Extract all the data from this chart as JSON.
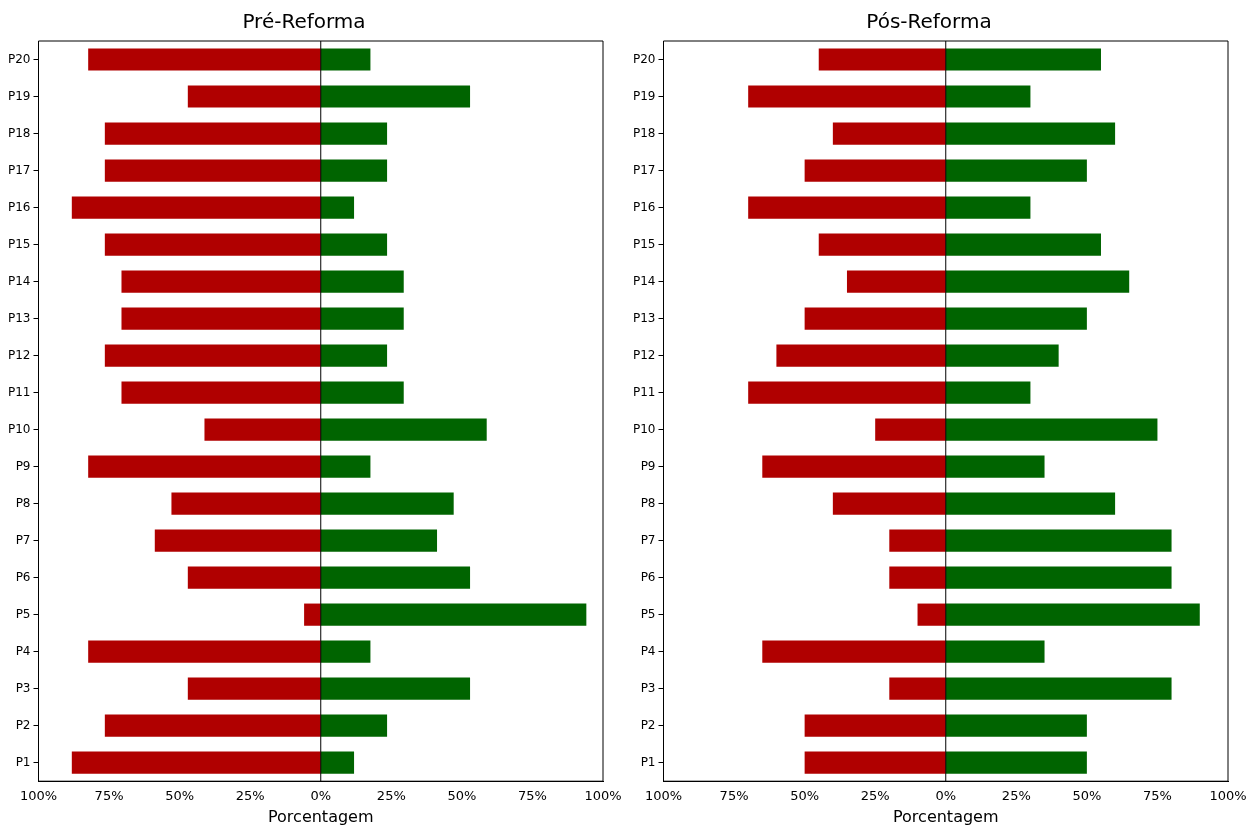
{
  "chart_data": [
    {
      "type": "bar",
      "title": "Pré-Reforma",
      "xlabel": "Porcentagem",
      "orientation": "horizontal",
      "stacked": true,
      "grid": false,
      "legend": false,
      "categories": [
        "P20",
        "P19",
        "P18",
        "P17",
        "P16",
        "P15",
        "P14",
        "P13",
        "P12",
        "P11",
        "P10",
        "P9",
        "P8",
        "P7",
        "P6",
        "P5",
        "P4",
        "P3",
        "P2",
        "P1"
      ],
      "series": [
        {
          "color": "#b00000",
          "values": [
            -82.4,
            -47.1,
            -76.5,
            -76.5,
            -88.2,
            -76.5,
            -70.6,
            -70.6,
            -76.5,
            -70.6,
            -41.2,
            -82.4,
            -52.9,
            -58.8,
            -47.1,
            -5.9,
            -82.4,
            -47.1,
            -76.5,
            -88.2
          ]
        },
        {
          "color": "#006400",
          "values": [
            17.6,
            52.9,
            23.5,
            23.5,
            11.8,
            23.5,
            29.4,
            29.4,
            23.5,
            29.4,
            58.8,
            17.6,
            47.1,
            41.2,
            52.9,
            94.1,
            17.6,
            52.9,
            23.5,
            11.8
          ]
        }
      ],
      "xlim": [
        -100,
        100
      ],
      "xticks": [
        {
          "value": -100,
          "label": "100%"
        },
        {
          "value": -75,
          "label": "75%"
        },
        {
          "value": -50,
          "label": "50%"
        },
        {
          "value": -25,
          "label": "25%"
        },
        {
          "value": 0,
          "label": "0%"
        },
        {
          "value": 25,
          "label": "25%"
        },
        {
          "value": 50,
          "label": "50%"
        },
        {
          "value": 75,
          "label": "75%"
        },
        {
          "value": 100,
          "label": "100%"
        }
      ],
      "ref_lines": [
        {
          "axis": "x",
          "value": 0,
          "color": "#000000"
        }
      ]
    },
    {
      "type": "bar",
      "title": "Pós-Reforma",
      "xlabel": "Porcentagem",
      "orientation": "horizontal",
      "stacked": true,
      "grid": false,
      "legend": false,
      "categories": [
        "P20",
        "P19",
        "P18",
        "P17",
        "P16",
        "P15",
        "P14",
        "P13",
        "P12",
        "P11",
        "P10",
        "P9",
        "P8",
        "P7",
        "P6",
        "P5",
        "P4",
        "P3",
        "P2",
        "P1"
      ],
      "series": [
        {
          "color": "#b00000",
          "values": [
            -45,
            -70,
            -40,
            -50,
            -70,
            -45,
            -35,
            -50,
            -60,
            -70,
            -25,
            -65,
            -40,
            -20,
            -20,
            -10,
            -65,
            -20,
            -50,
            -50
          ]
        },
        {
          "color": "#006400",
          "values": [
            55,
            30,
            60,
            50,
            30,
            55,
            65,
            50,
            40,
            30,
            75,
            35,
            60,
            80,
            80,
            90,
            35,
            80,
            50,
            50
          ]
        }
      ],
      "xlim": [
        -100,
        100
      ],
      "xticks": [
        {
          "value": -100,
          "label": "100%"
        },
        {
          "value": -75,
          "label": "75%"
        },
        {
          "value": -50,
          "label": "50%"
        },
        {
          "value": -25,
          "label": "25%"
        },
        {
          "value": 0,
          "label": "0%"
        },
        {
          "value": 25,
          "label": "25%"
        },
        {
          "value": 50,
          "label": "50%"
        },
        {
          "value": 75,
          "label": "75%"
        },
        {
          "value": 100,
          "label": "100%"
        }
      ],
      "ref_lines": [
        {
          "axis": "x",
          "value": 0,
          "color": "#000000"
        }
      ]
    }
  ]
}
